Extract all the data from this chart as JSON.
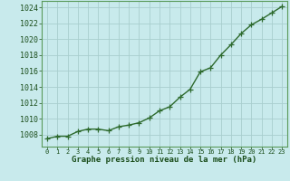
{
  "x": [
    0,
    1,
    2,
    3,
    4,
    5,
    6,
    7,
    8,
    9,
    10,
    11,
    12,
    13,
    14,
    15,
    16,
    17,
    18,
    19,
    20,
    21,
    22,
    23
  ],
  "y": [
    1007.5,
    1007.8,
    1007.8,
    1008.4,
    1008.7,
    1008.7,
    1008.5,
    1009.0,
    1009.2,
    1009.5,
    1010.1,
    1011.0,
    1011.5,
    1012.7,
    1013.7,
    1015.9,
    1016.4,
    1018.0,
    1019.3,
    1020.7,
    1021.8,
    1022.5,
    1023.3,
    1024.1
  ],
  "line_color": "#2d6a2d",
  "marker": "+",
  "marker_size": 4,
  "marker_color": "#2d6a2d",
  "line_width": 1.0,
  "background_color": "#c8eaec",
  "grid_color": "#a8cece",
  "ylabel_ticks": [
    1008,
    1010,
    1012,
    1014,
    1016,
    1018,
    1020,
    1022,
    1024
  ],
  "ylim": [
    1006.5,
    1024.8
  ],
  "xlim": [
    -0.5,
    23.5
  ],
  "xlabel": "Graphe pression niveau de la mer (hPa)",
  "xlabel_color": "#1a4d1a",
  "tick_color": "#1a4d1a",
  "tick_label_color": "#1a4d1a",
  "xlabel_fontsize": 6.5,
  "ytick_fontsize": 6.0,
  "xtick_fontsize": 5.0,
  "border_color": "#5a9a5a"
}
